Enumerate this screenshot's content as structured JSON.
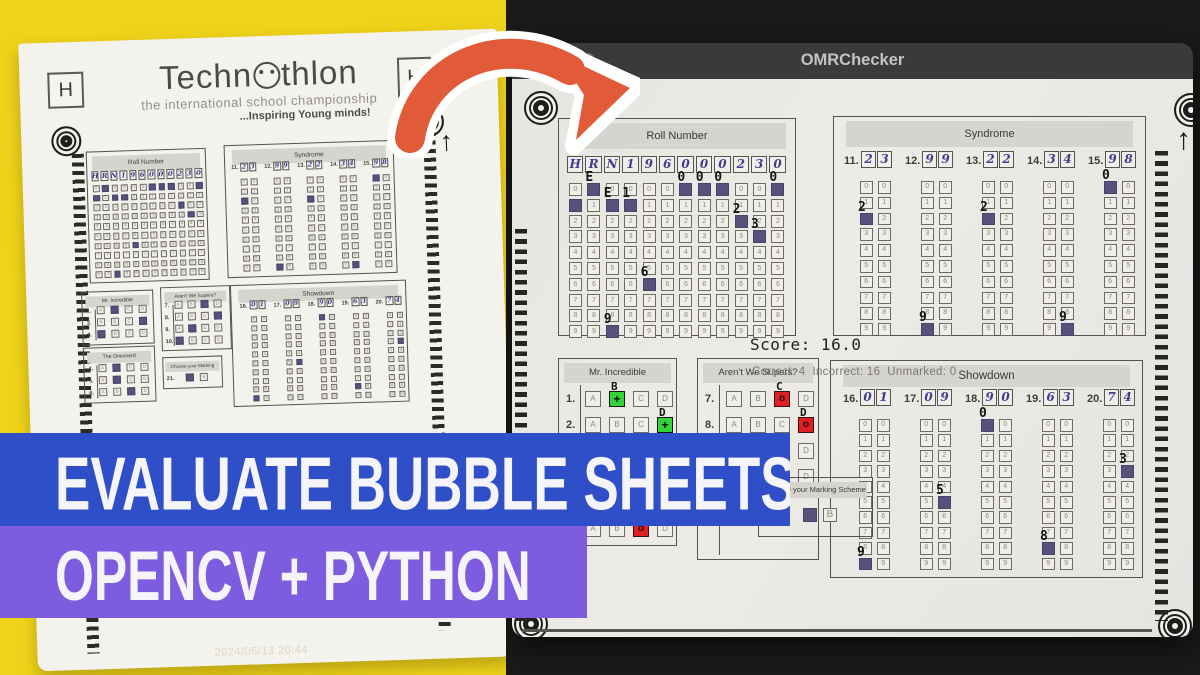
{
  "window": {
    "title": "OMRChecker",
    "score": "Score: 16.0",
    "stats": "Correct: 4  Incorrect: 16  Unmarked: 0"
  },
  "banners": {
    "line1": "EVALUATE BUBBLE SHEETS",
    "line2": "OPENCV + PYTHON",
    "line1_bg": "#2e4fc7",
    "line2_bg": "#7d5ce0"
  },
  "paper": {
    "corner_left": "H",
    "corner_right": "H",
    "logo_pre": "Techn",
    "logo_post": "thlon",
    "subtitle": "the international school championship",
    "tagline": "...Inspiring Young minds!",
    "timestamp": "2024/06/13 20:44"
  },
  "colors": {
    "yellow_bg": "#efd31a",
    "dark_bg": "#1a1a1a",
    "arrow_orange": "#e25b38",
    "correct_green": "#34d33a",
    "incorrect_red": "#df1f22",
    "pen_fill": "#56527b"
  },
  "sheet": {
    "options": [
      "A",
      "B",
      "C",
      "D"
    ],
    "roll": {
      "title": "Roll Number",
      "value": "HRN196000230",
      "handwritten": [
        "H",
        "R",
        "N",
        "1",
        "9",
        "6",
        "0",
        "0",
        "0",
        "2",
        "3",
        "0"
      ],
      "cols": 12,
      "rows": 10,
      "filled": [
        [
          2,
          0
        ],
        [
          7,
          0
        ],
        [
          8,
          0
        ],
        [
          9,
          0
        ],
        [
          12,
          0
        ],
        [
          1,
          1
        ],
        [
          3,
          1
        ],
        [
          4,
          1
        ],
        [
          10,
          2
        ],
        [
          11,
          3
        ],
        [
          5,
          6
        ],
        [
          3,
          9
        ]
      ],
      "annotations": [
        [
          2,
          0,
          "E"
        ],
        [
          7,
          0,
          "0"
        ],
        [
          8,
          0,
          "0"
        ],
        [
          9,
          0,
          "0"
        ],
        [
          12,
          0,
          "0"
        ],
        [
          3,
          1,
          "E"
        ],
        [
          4,
          1,
          "1"
        ],
        [
          10,
          2,
          "2"
        ],
        [
          11,
          3,
          "3"
        ],
        [
          5,
          6,
          "6"
        ],
        [
          3,
          9,
          "9"
        ]
      ]
    },
    "syndrome": {
      "title": "Syndrome",
      "questions": [
        {
          "label": "11.",
          "written": [
            "2",
            "3"
          ],
          "filled": [
            [
              1,
              2
            ]
          ],
          "annotations": [
            [
              1,
              2,
              "2"
            ]
          ]
        },
        {
          "label": "12.",
          "written": [
            "9",
            "9"
          ],
          "filled": [
            [
              1,
              9
            ]
          ],
          "annotations": [
            [
              1,
              9,
              "9"
            ]
          ]
        },
        {
          "label": "13.",
          "written": [
            "2",
            "2"
          ],
          "filled": [
            [
              1,
              2
            ]
          ],
          "annotations": [
            [
              1,
              2,
              "2"
            ]
          ]
        },
        {
          "label": "14.",
          "written": [
            "3",
            "4"
          ],
          "filled": [
            [
              2,
              9
            ]
          ],
          "annotations": [
            [
              2,
              9,
              "9"
            ]
          ]
        },
        {
          "label": "15.",
          "written": [
            "9",
            "8"
          ],
          "filled": [
            [
              1,
              0
            ]
          ],
          "annotations": [
            [
              1,
              0,
              "0"
            ]
          ]
        }
      ]
    },
    "showdown": {
      "title": "Showdown",
      "questions": [
        {
          "label": "16.",
          "written": [
            "0",
            "1"
          ],
          "filled": [
            [
              1,
              9
            ]
          ],
          "annotations": [
            [
              1,
              9,
              "9"
            ]
          ]
        },
        {
          "label": "17.",
          "written": [
            "0",
            "9"
          ],
          "filled": [
            [
              2,
              5
            ]
          ],
          "annotations": [
            [
              2,
              5,
              "5"
            ]
          ]
        },
        {
          "label": "18.",
          "written": [
            "9",
            "0"
          ],
          "filled": [
            [
              1,
              0
            ]
          ],
          "annotations": [
            [
              1,
              0,
              "0"
            ]
          ]
        },
        {
          "label": "19.",
          "written": [
            "6",
            "3"
          ],
          "filled": [
            [
              1,
              8
            ]
          ],
          "annotations": [
            [
              1,
              8,
              "8"
            ]
          ]
        },
        {
          "label": "20.",
          "written": [
            "7",
            "4"
          ],
          "filled": [
            [
              2,
              3
            ]
          ],
          "annotations": [
            [
              2,
              3,
              "3"
            ]
          ]
        }
      ]
    },
    "mr_incredible": {
      "title": "Mr. Incredible",
      "questions": [
        {
          "label": "1.",
          "marked": "B",
          "result": "correct"
        },
        {
          "label": "2.",
          "marked": "D",
          "result": "correct"
        },
        {
          "label": "3.",
          "marked": "A",
          "result": "incorrect"
        },
        {
          "label": "6.",
          "marked": "C",
          "result": "incorrect"
        }
      ]
    },
    "omninerd": {
      "title": "The Omninerd",
      "questions": [
        {
          "label": "4.",
          "marked": "B",
          "result": "none"
        },
        {
          "label": "5.",
          "marked": "B",
          "result": "none"
        },
        {
          "label": "6.",
          "marked": "C",
          "result": "none"
        }
      ]
    },
    "supers": {
      "title": "Aren't We Supers?",
      "questions": [
        {
          "label": "7.",
          "marked": "C",
          "result": "incorrect"
        },
        {
          "label": "8.",
          "marked": "D",
          "result": "incorrect"
        },
        {
          "label": "9.",
          "marked": "B",
          "result": "correct"
        },
        {
          "label": "10.",
          "marked": "A",
          "result": "none"
        }
      ]
    },
    "scheme": {
      "title": "Choose your Marking Scheme",
      "label": "21.",
      "options": 2,
      "marked": 1
    }
  }
}
